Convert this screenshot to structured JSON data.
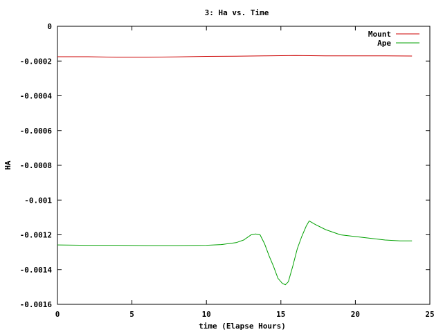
{
  "chart_data": {
    "type": "line",
    "title": "3: Ha vs. Time",
    "xlabel": "time (Elapse Hours)",
    "ylabel": "HA",
    "xlim": [
      0,
      25
    ],
    "ylim": [
      -0.0016,
      0
    ],
    "xticks": [
      0,
      5,
      10,
      15,
      20,
      25
    ],
    "xtick_labels": [
      "0",
      "5",
      "10",
      "15",
      "20",
      "25"
    ],
    "yticks": [
      0,
      -0.0002,
      -0.0004,
      -0.0006,
      -0.0008,
      -0.001,
      -0.0012,
      -0.0014,
      -0.0016
    ],
    "ytick_labels": [
      "0",
      "-0.0002",
      "-0.0004",
      "-0.0006",
      "-0.0008",
      "-0.001",
      "-0.0012",
      "-0.0014",
      "-0.0016"
    ],
    "grid": false,
    "legend_position": "top-right",
    "series": [
      {
        "name": "Mount",
        "color": "#cc0000",
        "x": [
          0,
          2,
          4,
          6,
          8,
          10,
          12,
          14,
          16,
          18,
          20,
          22,
          23.8
        ],
        "y": [
          -0.000175,
          -0.000175,
          -0.000178,
          -0.000178,
          -0.000176,
          -0.000173,
          -0.000172,
          -0.00017,
          -0.000168,
          -0.00017,
          -0.00017,
          -0.00017,
          -0.000171
        ]
      },
      {
        "name": "Ape",
        "color": "#00a000",
        "x": [
          0,
          2,
          4,
          6,
          8,
          10,
          11,
          12,
          12.5,
          13,
          13.3,
          13.6,
          13.9,
          14.2,
          14.5,
          14.8,
          15.1,
          15.3,
          15.5,
          15.8,
          16.1,
          16.4,
          16.7,
          16.9,
          17.3,
          18,
          19,
          20,
          21,
          22,
          23,
          23.8
        ],
        "y": [
          -0.001258,
          -0.00126,
          -0.00126,
          -0.001262,
          -0.001262,
          -0.00126,
          -0.001256,
          -0.001245,
          -0.00123,
          -0.0012,
          -0.001195,
          -0.0012,
          -0.00125,
          -0.00132,
          -0.00138,
          -0.00145,
          -0.00148,
          -0.001487,
          -0.00147,
          -0.00138,
          -0.00128,
          -0.00121,
          -0.00115,
          -0.00112,
          -0.00114,
          -0.00117,
          -0.0012,
          -0.00121,
          -0.00122,
          -0.00123,
          -0.001235,
          -0.001235
        ]
      }
    ]
  }
}
